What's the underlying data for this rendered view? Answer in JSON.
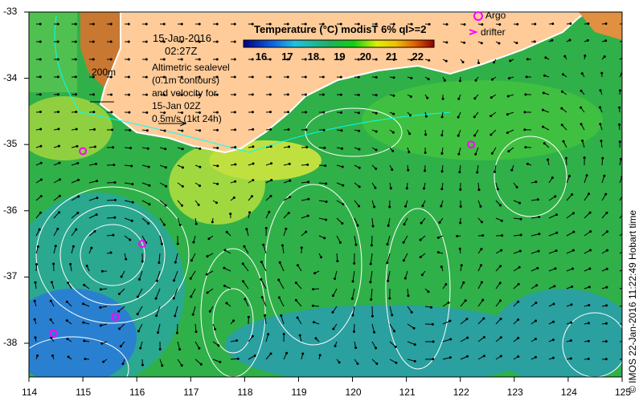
{
  "header": {
    "date": "15-Jan-2016",
    "time": "02:27Z"
  },
  "annotation": {
    "lines": [
      "Altimetric sealevel",
      "(0.1m contours)",
      "and velocity for",
      "15-Jan 02Z",
      "0.5m/s (1kt 24h)"
    ],
    "isobath": "200m"
  },
  "colorbar": {
    "title": "Temperature (°C) modisT 6% ql>=2",
    "ticks": [
      "16",
      "17",
      "18",
      "19",
      "20",
      "21",
      "22"
    ],
    "range": [
      15.3,
      22.6
    ]
  },
  "legend": {
    "argo": "Argo",
    "drifter": "drifter"
  },
  "axes": {
    "x_ticks": [
      "114",
      "115",
      "116",
      "117",
      "118",
      "119",
      "120",
      "121",
      "122",
      "123",
      "124",
      "125"
    ],
    "y_ticks": [
      "-33",
      "-34",
      "-35",
      "-36",
      "-37",
      "-38"
    ]
  },
  "argo_floats": [
    [
      115.0,
      -35.1
    ],
    [
      116.1,
      -36.5
    ],
    [
      115.6,
      -37.6
    ],
    [
      114.45,
      -37.85
    ],
    [
      122.2,
      -35.0
    ]
  ],
  "credit": "© IMOS 22-Jan-2016 11:22:49 Hobart time",
  "colors": {
    "land": "#ffcc99",
    "argo": "#ff00ff",
    "ocean": "#33bb44"
  }
}
